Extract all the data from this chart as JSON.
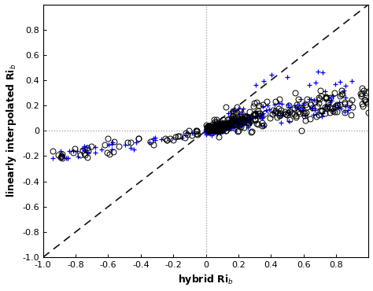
{
  "xlabel": "hybrid Ri$_b$",
  "ylabel": "linearly interpolated Ri$_b$",
  "xlim": [
    -1,
    1
  ],
  "ylim": [
    -1,
    1
  ],
  "xticks": [
    -1.0,
    -0.8,
    -0.6,
    -0.4,
    -0.2,
    0.0,
    0.2,
    0.4,
    0.6,
    0.8
  ],
  "yticks": [
    -1.0,
    -0.8,
    -0.6,
    -0.4,
    -0.2,
    0.0,
    0.2,
    0.4,
    0.6,
    0.8
  ],
  "diag_line_color": "#111111",
  "dotted_line_color": "#999999",
  "circle_color": "black",
  "plus_color": "blue",
  "background_color": "white"
}
